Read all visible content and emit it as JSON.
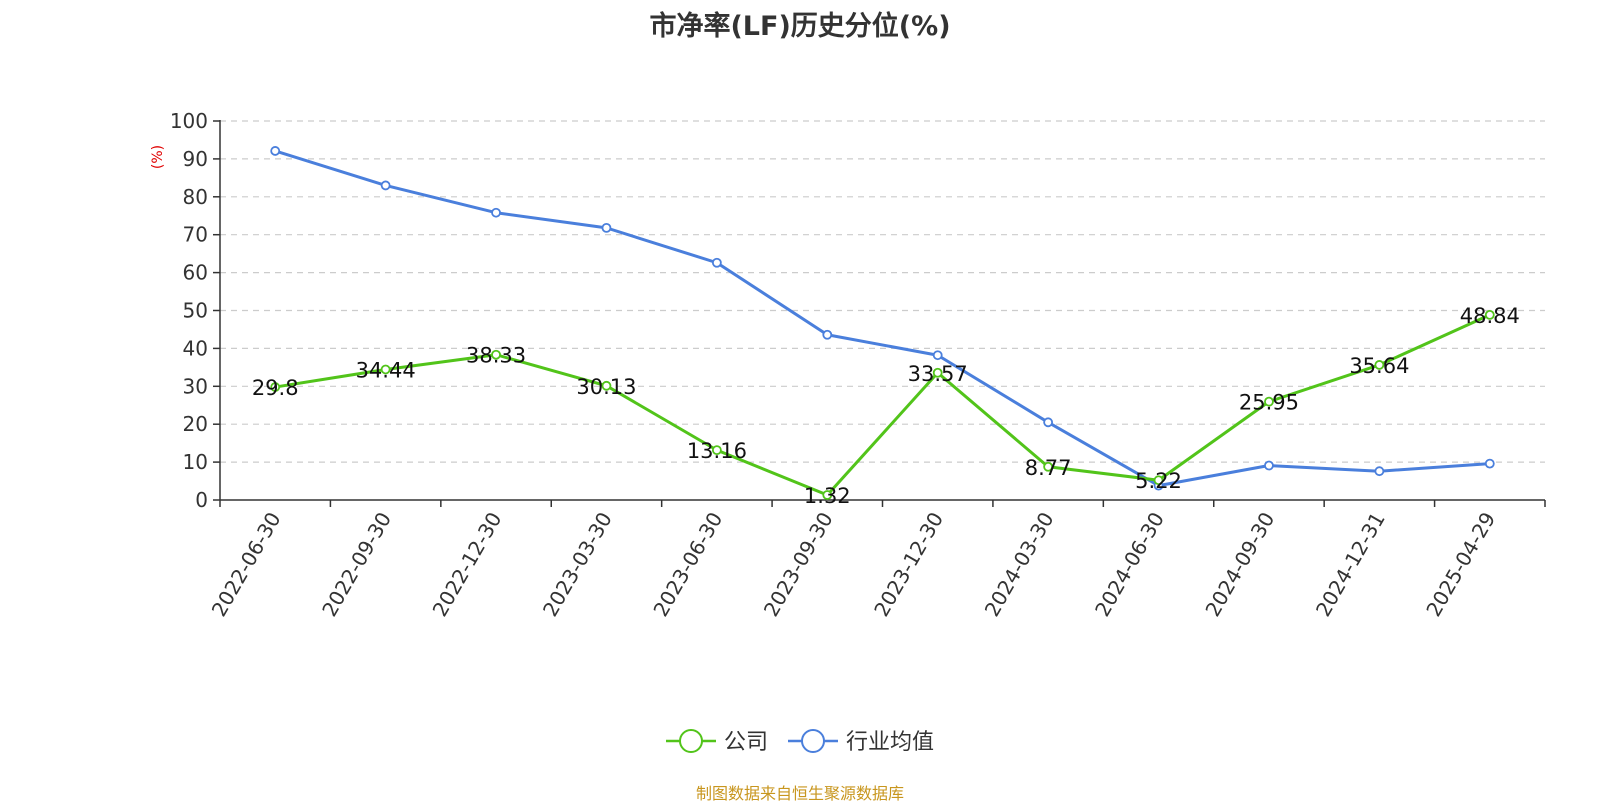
{
  "chart_data": {
    "type": "line",
    "title": "市净率(LF)历史分位(%)",
    "ylabel": "(%)",
    "ylim": [
      0,
      100
    ],
    "yticks": [
      0,
      10,
      20,
      30,
      40,
      50,
      60,
      70,
      80,
      90,
      100
    ],
    "grid": true,
    "legend_position": "bottom-center",
    "x": [
      "2022-06-30",
      "2022-09-30",
      "2022-12-30",
      "2023-03-30",
      "2023-06-30",
      "2023-09-30",
      "2023-12-30",
      "2024-03-30",
      "2024-06-30",
      "2024-09-30",
      "2024-12-31",
      "2025-04-29"
    ],
    "series": [
      {
        "name": "公司",
        "color": "#52c41a",
        "labeled": true,
        "values": [
          29.8,
          34.44,
          38.33,
          30.13,
          13.16,
          1.32,
          33.57,
          8.77,
          5.22,
          25.95,
          35.64,
          48.84
        ]
      },
      {
        "name": "行业均值",
        "color": "#4a7fdc",
        "labeled": false,
        "values": [
          92.1,
          83.0,
          75.8,
          71.8,
          62.6,
          43.6,
          38.2,
          20.5,
          3.8,
          9.1,
          7.6,
          9.6
        ]
      }
    ]
  },
  "source": "制图数据来自恒生聚源数据库"
}
